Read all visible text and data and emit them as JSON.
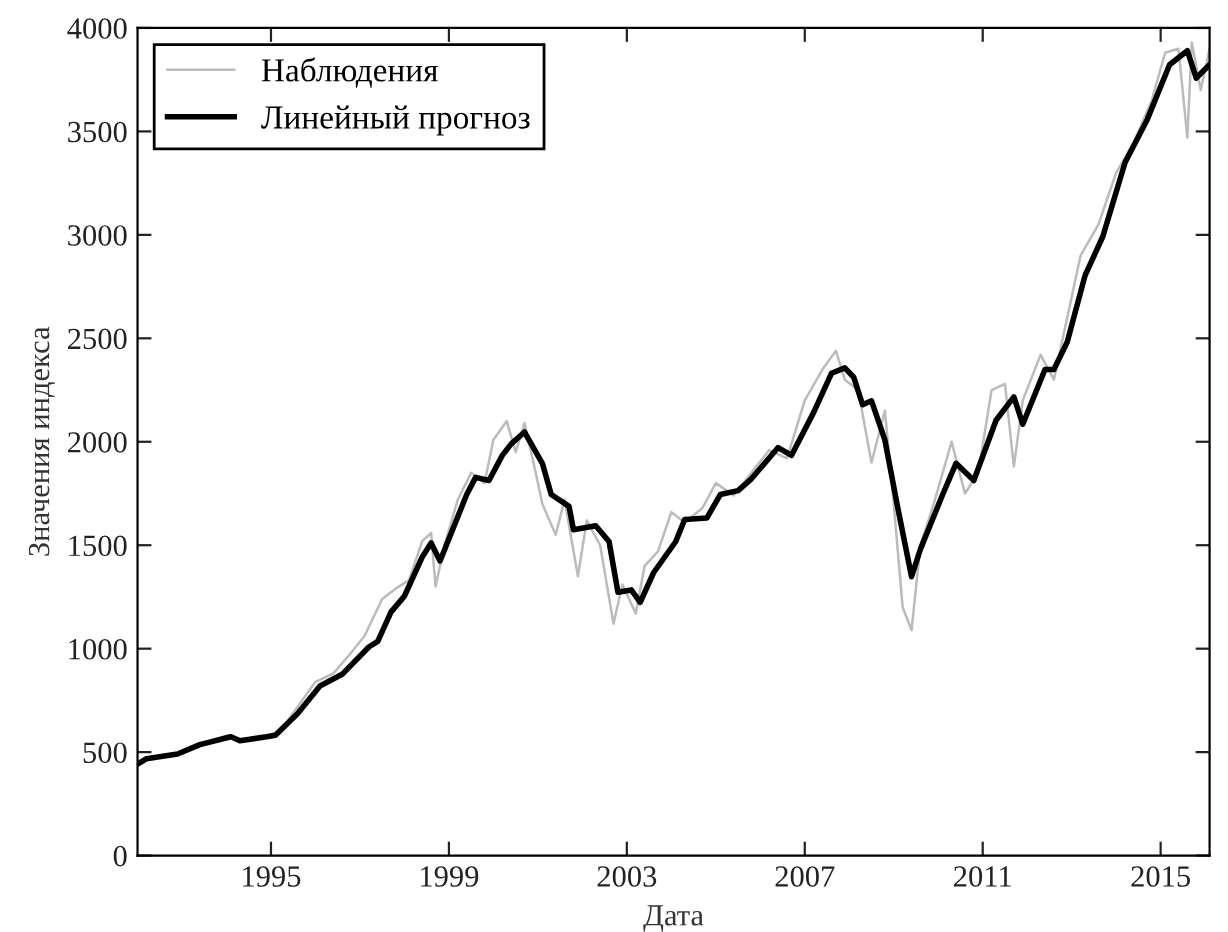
{
  "chart_data": {
    "type": "line",
    "xlabel": "Дата",
    "ylabel": "Значения индекса",
    "xlim": [
      1992,
      2016.1
    ],
    "ylim": [
      0,
      4000
    ],
    "xticks": [
      1995,
      1999,
      2003,
      2007,
      2011,
      2015
    ],
    "yticks": [
      0,
      500,
      1000,
      1500,
      2000,
      2500,
      3000,
      3500,
      4000
    ],
    "grid": false,
    "legend": "top left",
    "marker": "none",
    "line_style": "solid",
    "series": [
      {
        "name": "Наблюдения",
        "color": "#bbbbbb",
        "x": [
          1992.0,
          1992.5,
          1993.0,
          1993.5,
          1994.0,
          1994.4,
          1994.8,
          1995.2,
          1995.6,
          1996.0,
          1996.4,
          1996.8,
          1997.1,
          1997.5,
          1997.8,
          1998.1,
          1998.4,
          1998.6,
          1998.7,
          1998.9,
          1999.2,
          1999.5,
          1999.8,
          2000.0,
          2000.3,
          2000.5,
          2000.7,
          2000.9,
          2001.1,
          2001.4,
          2001.6,
          2001.9,
          2002.1,
          2002.4,
          2002.7,
          2002.9,
          2003.2,
          2003.4,
          2003.7,
          2004.0,
          2004.3,
          2004.7,
          2005.0,
          2005.4,
          2005.8,
          2006.2,
          2006.6,
          2007.0,
          2007.4,
          2007.7,
          2007.9,
          2008.2,
          2008.5,
          2008.8,
          2009.0,
          2009.2,
          2009.4,
          2009.6,
          2009.9,
          2010.3,
          2010.6,
          2010.9,
          2011.2,
          2011.5,
          2011.7,
          2011.9,
          2012.3,
          2012.6,
          2012.9,
          2013.2,
          2013.6,
          2014.0,
          2014.4,
          2014.8,
          2015.1,
          2015.4,
          2015.6,
          2015.7,
          2015.9,
          2016.1
        ],
        "values": [
          450,
          480,
          500,
          545,
          580,
          560,
          570,
          600,
          720,
          840,
          880,
          980,
          1060,
          1240,
          1290,
          1330,
          1520,
          1560,
          1300,
          1500,
          1720,
          1850,
          1800,
          2010,
          2100,
          1950,
          2090,
          1900,
          1700,
          1550,
          1720,
          1350,
          1620,
          1500,
          1120,
          1310,
          1170,
          1400,
          1470,
          1660,
          1610,
          1680,
          1800,
          1740,
          1850,
          1960,
          1920,
          2200,
          2350,
          2440,
          2300,
          2250,
          1900,
          2150,
          1700,
          1200,
          1090,
          1500,
          1700,
          2000,
          1750,
          1850,
          2250,
          2280,
          1880,
          2200,
          2420,
          2300,
          2600,
          2900,
          3050,
          3300,
          3450,
          3650,
          3880,
          3900,
          3470,
          3930,
          3700,
          3900
        ]
      },
      {
        "name": "Линейный прогноз",
        "color": "#000000",
        "x": [
          1992.0,
          1992.2,
          1992.9,
          1993.4,
          1994.1,
          1994.3,
          1994.9,
          1995.1,
          1995.6,
          1996.1,
          1996.6,
          1997.2,
          1997.4,
          1997.7,
          1998.0,
          1998.4,
          1998.6,
          1998.8,
          1999.4,
          1999.6,
          1999.9,
          2000.2,
          2000.4,
          2000.7,
          2001.1,
          2001.3,
          2001.7,
          2001.8,
          2002.3,
          2002.6,
          2002.8,
          2003.1,
          2003.3,
          2003.6,
          2004.1,
          2004.3,
          2004.8,
          2005.1,
          2005.5,
          2005.8,
          2006.4,
          2006.7,
          2007.2,
          2007.6,
          2007.9,
          2008.1,
          2008.3,
          2008.5,
          2008.8,
          2009.1,
          2009.4,
          2009.6,
          2010.1,
          2010.4,
          2010.8,
          2011.3,
          2011.7,
          2011.9,
          2012.4,
          2012.6,
          2012.9,
          2013.3,
          2013.7,
          2014.2,
          2014.7,
          2015.2,
          2015.6,
          2015.8,
          2016.1
        ],
        "values": [
          442,
          468,
          491,
          536,
          574,
          555,
          574,
          582,
          687,
          820,
          876,
          1008,
          1035,
          1178,
          1254,
          1443,
          1511,
          1424,
          1745,
          1828,
          1813,
          1934,
          1990,
          2047,
          1896,
          1745,
          1688,
          1575,
          1594,
          1518,
          1273,
          1284,
          1224,
          1367,
          1518,
          1624,
          1632,
          1745,
          1764,
          1821,
          1972,
          1934,
          2142,
          2331,
          2357,
          2312,
          2179,
          2198,
          2009,
          1670,
          1348,
          1481,
          1745,
          1896,
          1813,
          2104,
          2217,
          2085,
          2349,
          2349,
          2482,
          2803,
          2992,
          3350,
          3558,
          3822,
          3890,
          3758,
          3822
        ]
      }
    ]
  }
}
